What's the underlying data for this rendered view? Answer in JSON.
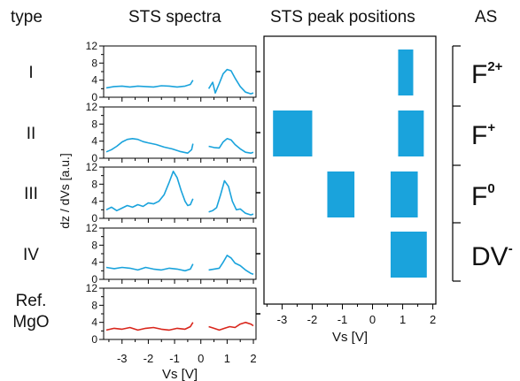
{
  "headers": {
    "type": "type",
    "spectra": "STS spectra",
    "peaks": "STS peak positions",
    "as": "AS"
  },
  "colors": {
    "spectrum": "#1aa3dc",
    "reference": "#d9261c",
    "bar": "#1aa3dc",
    "axis": "#000000"
  },
  "chart_data": [
    {
      "type": "line",
      "panels": [
        {
          "label": "I",
          "series": [
            {
              "x": [
                -3.6,
                -3.3,
                -3.0,
                -2.7,
                -2.4,
                -2.1,
                -1.8,
                -1.5,
                -1.2,
                -0.9,
                -0.6,
                -0.4,
                -0.3
              ],
              "y": [
                2.2,
                2.5,
                2.6,
                2.4,
                2.6,
                2.5,
                2.4,
                2.7,
                2.6,
                2.4,
                2.6,
                3.0,
                4.0
              ]
            },
            {
              "x": [
                0.3,
                0.45,
                0.55,
                0.7,
                0.85,
                1.0,
                1.15,
                1.3,
                1.5,
                1.7,
                1.9,
                2.0
              ],
              "y": [
                2.0,
                3.5,
                1.0,
                3.2,
                5.5,
                6.5,
                6.2,
                4.5,
                2.5,
                1.2,
                0.8,
                1.0
              ]
            }
          ]
        },
        {
          "label": "II",
          "series": [
            {
              "x": [
                -3.6,
                -3.4,
                -3.2,
                -3.0,
                -2.8,
                -2.6,
                -2.4,
                -2.2,
                -2.0,
                -1.7,
                -1.4,
                -1.1,
                -0.8,
                -0.5,
                -0.35,
                -0.3
              ],
              "y": [
                1.5,
                2.0,
                2.8,
                3.8,
                4.4,
                4.6,
                4.4,
                3.9,
                3.6,
                3.2,
                2.6,
                2.2,
                1.6,
                1.2,
                2.0,
                3.4
              ]
            },
            {
              "x": [
                0.3,
                0.5,
                0.7,
                0.85,
                1.0,
                1.15,
                1.3,
                1.5,
                1.7,
                1.9,
                2.0
              ],
              "y": [
                2.8,
                2.5,
                2.4,
                3.8,
                4.6,
                4.3,
                3.2,
                2.2,
                1.4,
                1.2,
                1.4
              ]
            }
          ]
        },
        {
          "label": "III",
          "series": [
            {
              "x": [
                -3.6,
                -3.4,
                -3.2,
                -3.0,
                -2.8,
                -2.6,
                -2.4,
                -2.2,
                -2.0,
                -1.8,
                -1.6,
                -1.4,
                -1.2,
                -1.05,
                -0.9,
                -0.75,
                -0.6,
                -0.5,
                -0.4,
                -0.3
              ],
              "y": [
                2.0,
                2.6,
                1.8,
                2.4,
                3.0,
                2.6,
                3.2,
                2.8,
                3.6,
                3.4,
                4.0,
                5.5,
                8.5,
                11.0,
                9.5,
                6.5,
                4.0,
                3.0,
                3.2,
                4.6
              ]
            },
            {
              "x": [
                0.3,
                0.45,
                0.6,
                0.75,
                0.9,
                1.05,
                1.2,
                1.35,
                1.5,
                1.7,
                1.9,
                2.0
              ],
              "y": [
                1.5,
                1.8,
                2.5,
                5.5,
                8.8,
                7.5,
                4.0,
                2.0,
                2.2,
                1.2,
                0.8,
                1.0
              ]
            }
          ]
        },
        {
          "label": "IV",
          "series": [
            {
              "x": [
                -3.6,
                -3.3,
                -3.0,
                -2.7,
                -2.4,
                -2.1,
                -1.8,
                -1.5,
                -1.2,
                -0.9,
                -0.6,
                -0.4,
                -0.3
              ],
              "y": [
                2.8,
                2.5,
                2.8,
                2.6,
                2.2,
                2.8,
                2.4,
                2.2,
                2.6,
                2.4,
                2.0,
                2.4,
                3.6
              ]
            },
            {
              "x": [
                0.3,
                0.5,
                0.7,
                0.85,
                1.0,
                1.15,
                1.3,
                1.5,
                1.7,
                1.9,
                2.0
              ],
              "y": [
                2.2,
                2.4,
                2.6,
                4.0,
                5.6,
                5.0,
                3.8,
                3.2,
                2.2,
                1.4,
                1.2
              ]
            }
          ]
        },
        {
          "label": "Ref.\nMgO",
          "series": [
            {
              "x": [
                -3.6,
                -3.3,
                -3.0,
                -2.7,
                -2.4,
                -2.1,
                -1.8,
                -1.5,
                -1.2,
                -0.9,
                -0.6,
                -0.4,
                -0.3
              ],
              "y": [
                2.2,
                2.6,
                2.4,
                2.8,
                2.2,
                2.6,
                2.8,
                2.4,
                2.2,
                2.6,
                2.4,
                3.0,
                4.0
              ]
            },
            {
              "x": [
                0.3,
                0.5,
                0.7,
                0.9,
                1.1,
                1.3,
                1.5,
                1.7,
                1.9,
                2.0
              ],
              "y": [
                3.0,
                2.6,
                2.2,
                2.6,
                3.0,
                2.8,
                3.6,
                4.0,
                3.6,
                3.2
              ]
            }
          ]
        }
      ],
      "xlim": [
        -3.7,
        2.1
      ],
      "ylim": [
        0,
        12
      ],
      "xticks": [
        -3,
        -2,
        -1,
        0,
        1,
        2
      ],
      "yticks": [
        0,
        4,
        8,
        12
      ],
      "xlabel": "Vs [V]",
      "ylabel": "dz / dVs [a.u.]",
      "grid": false
    },
    {
      "type": "bar",
      "xlim": [
        -3.6,
        2.1
      ],
      "xticks": [
        -3,
        -2,
        -1,
        0,
        1,
        2
      ],
      "xlabel": "Vs [V]",
      "rows": [
        "F2+",
        "F+",
        "F0",
        "DV"
      ],
      "bars": [
        {
          "row": 0,
          "x0": 0.85,
          "x1": 1.35
        },
        {
          "row": 1,
          "x0": -3.3,
          "x1": -2.0
        },
        {
          "row": 1,
          "x0": 0.85,
          "x1": 1.7
        },
        {
          "row": 2,
          "x0": -1.5,
          "x1": -0.6
        },
        {
          "row": 2,
          "x0": 0.6,
          "x1": 1.5
        },
        {
          "row": 3,
          "x0": 0.6,
          "x1": 1.8
        }
      ]
    }
  ],
  "as_labels": [
    {
      "base": "F",
      "sup": "2+"
    },
    {
      "base": "F",
      "sup": "+"
    },
    {
      "base": "F",
      "sup": "0"
    },
    {
      "base": "DV",
      "sup": "-"
    }
  ]
}
